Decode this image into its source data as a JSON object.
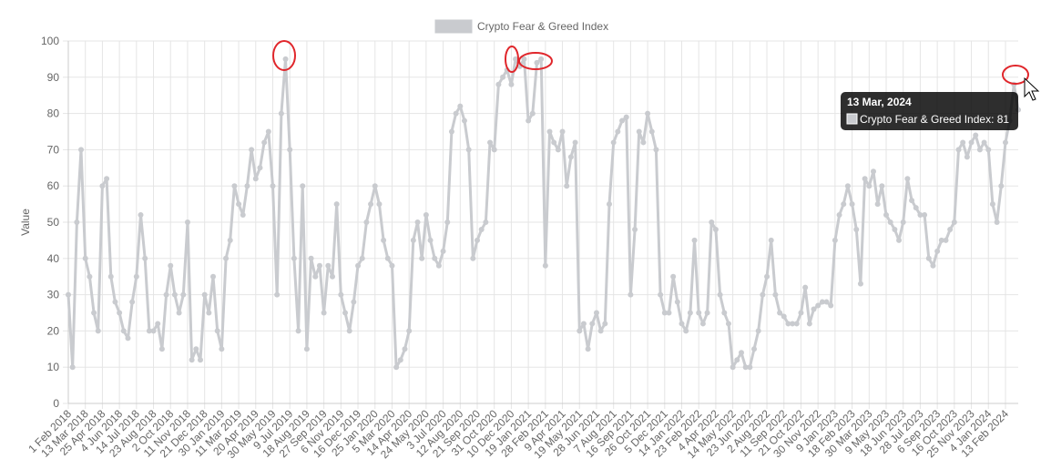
{
  "chart_data": {
    "type": "line",
    "y_label": "Value",
    "categories": [
      "1 Feb 2018",
      null,
      null,
      null,
      "13 Mar 2018",
      null,
      null,
      null,
      "25 Apr 2018",
      null,
      null,
      null,
      "4 Jun 2018",
      null,
      null,
      null,
      "14 Jul 2018",
      null,
      null,
      null,
      "23 Aug 2018",
      null,
      null,
      null,
      "2 Oct 2018",
      null,
      null,
      null,
      "11 Nov 2018",
      null,
      null,
      null,
      "21 Dec 2018",
      null,
      null,
      null,
      "30 Jan 2019",
      null,
      null,
      null,
      "11 Mar 2019",
      null,
      null,
      null,
      "20 Apr 2019",
      null,
      null,
      null,
      "30 May 2019",
      null,
      null,
      null,
      "9 Jul 2019",
      null,
      null,
      null,
      "18 Aug 2019",
      null,
      null,
      null,
      "27 Sep 2019",
      null,
      null,
      null,
      "6 Nov 2019",
      null,
      null,
      null,
      "16 Dec 2019",
      null,
      null,
      null,
      "25 Jan 2020",
      null,
      null,
      null,
      "5 Mar 2020",
      null,
      null,
      null,
      "14 Apr 2020",
      null,
      null,
      null,
      "24 May 2020",
      null,
      null,
      null,
      "3 Jul 2020",
      null,
      null,
      null,
      "12 Aug 2020",
      null,
      null,
      null,
      "21 Sep 2020",
      null,
      null,
      null,
      "31 Oct 2020",
      null,
      null,
      null,
      "10 Dec 2020",
      null,
      null,
      null,
      "19 Jan 2021",
      null,
      null,
      null,
      "28 Feb 2021",
      null,
      null,
      null,
      "9 Apr 2021",
      null,
      null,
      null,
      "19 May 2021",
      null,
      null,
      null,
      "28 Jun 2021",
      null,
      null,
      null,
      "7 Aug 2021",
      null,
      null,
      null,
      "16 Sep 2021",
      null,
      null,
      null,
      "26 Oct 2021",
      null,
      null,
      null,
      "5 Dec 2021",
      null,
      null,
      null,
      "14 Jan 2022",
      null,
      null,
      null,
      "23 Feb 2022",
      null,
      null,
      null,
      "4 Apr 2022",
      null,
      null,
      null,
      "14 May 2022",
      null,
      null,
      null,
      "23 Jun 2022",
      null,
      null,
      null,
      "2 Aug 2022",
      null,
      null,
      null,
      "11 Sep 2022",
      null,
      null,
      null,
      "21 Oct 2022",
      null,
      null,
      null,
      "30 Nov 2022",
      null,
      null,
      null,
      "9 Jan 2023",
      null,
      null,
      null,
      "18 Feb 2023",
      null,
      null,
      null,
      "30 Mar 2023",
      null,
      null,
      null,
      "9 May 2023",
      null,
      null,
      null,
      "18 Jun 2023",
      null,
      null,
      null,
      "28 Jul 2023",
      null,
      null,
      null,
      "6 Sep 2023",
      null,
      null,
      null,
      "16 Oct 2023",
      null,
      null,
      null,
      "25 Nov 2023",
      null,
      null,
      null,
      "4 Jan 2024",
      null,
      null,
      null,
      "13 Feb 2024",
      null,
      null,
      null
    ],
    "series": [
      {
        "name": "Crypto Fear & Greed Index",
        "color": "#c9cbcf",
        "values": [
          30,
          10,
          50,
          70,
          40,
          35,
          25,
          20,
          60,
          62,
          35,
          28,
          25,
          20,
          18,
          28,
          35,
          52,
          40,
          20,
          20,
          22,
          15,
          30,
          38,
          30,
          25,
          30,
          50,
          12,
          15,
          12,
          30,
          25,
          35,
          20,
          15,
          40,
          45,
          60,
          55,
          52,
          60,
          70,
          62,
          65,
          72,
          75,
          60,
          30,
          80,
          95,
          70,
          40,
          20,
          60,
          15,
          40,
          35,
          38,
          25,
          38,
          35,
          55,
          30,
          25,
          20,
          28,
          38,
          40,
          50,
          55,
          60,
          55,
          45,
          40,
          38,
          10,
          12,
          15,
          20,
          45,
          50,
          40,
          52,
          45,
          40,
          38,
          42,
          50,
          75,
          80,
          82,
          78,
          70,
          40,
          45,
          48,
          50,
          72,
          70,
          88,
          90,
          92,
          88,
          95,
          93,
          95,
          78,
          80,
          94,
          95,
          38,
          75,
          72,
          70,
          75,
          60,
          68,
          72,
          20,
          22,
          15,
          22,
          25,
          20,
          22,
          55,
          72,
          75,
          78,
          79,
          30,
          48,
          75,
          72,
          80,
          75,
          70,
          30,
          25,
          25,
          35,
          28,
          22,
          20,
          25,
          45,
          25,
          22,
          25,
          50,
          48,
          30,
          25,
          22,
          10,
          12,
          14,
          10,
          10,
          15,
          20,
          30,
          35,
          45,
          30,
          25,
          24,
          22,
          22,
          22,
          25,
          32,
          22,
          26,
          27,
          28,
          28,
          27,
          45,
          52,
          55,
          60,
          55,
          48,
          33,
          62,
          60,
          64,
          55,
          60,
          52,
          50,
          48,
          45,
          50,
          62,
          56,
          54,
          52,
          52,
          40,
          38,
          42,
          45,
          45,
          48,
          50,
          70,
          72,
          68,
          72,
          74,
          70,
          72,
          70,
          55,
          50,
          60,
          72,
          78,
          88,
          81
        ]
      }
    ],
    "ylim": [
      0,
      100
    ],
    "yticks": [
      0,
      10,
      20,
      30,
      40,
      50,
      60,
      70,
      80,
      90,
      100
    ],
    "grid": true,
    "legend": "top",
    "tooltip": {
      "title": "13 Mar, 2024",
      "text": "Crypto Fear & Greed Index: 81"
    }
  }
}
